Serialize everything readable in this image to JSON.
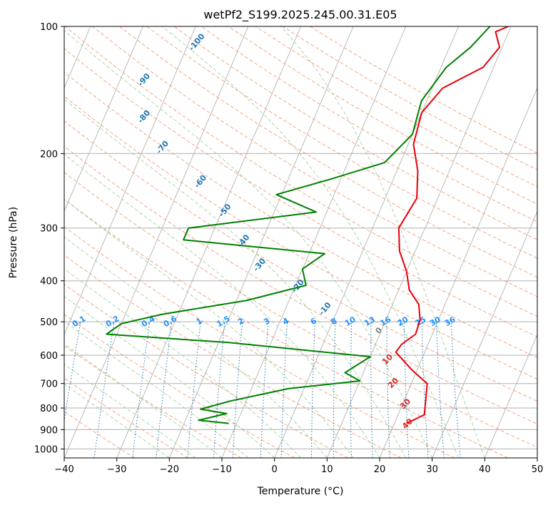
{
  "chart_data": {
    "type": "line",
    "title": "wetPf2_S199.2025.245.00.31.E05",
    "xlabel": "Temperature (°C)",
    "ylabel": "Pressure (hPa)",
    "xlim": [
      -40,
      50
    ],
    "ylim": [
      1050,
      100
    ],
    "yscale": "log",
    "grid": true,
    "x_ticks": [
      -40,
      -30,
      -20,
      -10,
      0,
      10,
      20,
      30,
      40,
      50
    ],
    "y_ticks": [
      100,
      200,
      300,
      400,
      500,
      600,
      700,
      800,
      900,
      1000
    ],
    "colors": {
      "temperature": "#e8000b",
      "dewpoint": "#008000",
      "dry_adiabat": "#f4a582",
      "moist_adiabat": "#a6d8a6",
      "mixing_ratio": "#1f77b4",
      "skew_line": "#a9a9a9",
      "label_blue": "#1f77b4",
      "label_mixing": "#1e90ff",
      "label_red": "#d62728"
    },
    "series": [
      {
        "key": "temperature",
        "points": [
          [
            22.3,
            870
          ],
          [
            25,
            830
          ],
          [
            24,
            760
          ],
          [
            23,
            700
          ],
          [
            19,
            650
          ],
          [
            14.5,
            590
          ],
          [
            15,
            565
          ],
          [
            16.8,
            535
          ],
          [
            16.5,
            495
          ],
          [
            15,
            455
          ],
          [
            12,
            420
          ],
          [
            10,
            380
          ],
          [
            7,
            340
          ],
          [
            5,
            300
          ],
          [
            6,
            255
          ],
          [
            4,
            220
          ],
          [
            1,
            190
          ],
          [
            0,
            160
          ],
          [
            2,
            140
          ],
          [
            8,
            125
          ],
          [
            9.5,
            112
          ],
          [
            7.5,
            103
          ],
          [
            9.5,
            100
          ]
        ]
      },
      {
        "key": "dewpoint",
        "points": [
          [
            -11.5,
            870
          ],
          [
            -17.5,
            855
          ],
          [
            -12.7,
            825
          ],
          [
            -18,
            805
          ],
          [
            -13,
            770
          ],
          [
            -3,
            720
          ],
          [
            10,
            690
          ],
          [
            6.5,
            660
          ],
          [
            10,
            605
          ],
          [
            -18,
            560
          ],
          [
            -42,
            535
          ],
          [
            -40,
            505
          ],
          [
            -33,
            480
          ],
          [
            -18,
            445
          ],
          [
            -8,
            410
          ],
          [
            -10,
            375
          ],
          [
            -7,
            345
          ],
          [
            -35,
            320
          ],
          [
            -35,
            300
          ],
          [
            -12,
            275
          ],
          [
            -21,
            250
          ],
          [
            -12,
            230
          ],
          [
            -3,
            210
          ],
          [
            0,
            180
          ],
          [
            -1,
            150
          ],
          [
            1,
            125
          ],
          [
            4,
            112
          ],
          [
            6,
            100
          ]
        ]
      }
    ],
    "annotations": {
      "dry_adiabat_labels": [
        "-100",
        "-90",
        "-80",
        "-70",
        "-60",
        "-50",
        "-40",
        "-30",
        "-20",
        "-10"
      ],
      "mixing_ratio_labels": [
        "0.1",
        "0.2",
        "0.4",
        "0.6",
        "1",
        "1.5",
        "2",
        "3",
        "4",
        "6",
        "8",
        "10",
        "13",
        "16",
        "20",
        "25",
        "30",
        "36"
      ],
      "moist_adiabat_labels": [
        "0",
        "10",
        "20",
        "30",
        "40"
      ]
    }
  }
}
